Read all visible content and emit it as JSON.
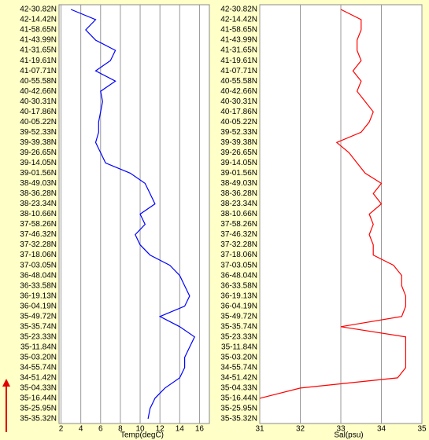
{
  "chart_data": [
    {
      "type": "line",
      "x_label": "Temp(degC)",
      "categories": [
        "42-30.82N",
        "42-14.42N",
        "41-58.65N",
        "41-43.99N",
        "41-31.65N",
        "41-19.61N",
        "41-07.71N",
        "40-55.58N",
        "40-42.66N",
        "40-30.31N",
        "40-17.86N",
        "40-05.22N",
        "39-52.33N",
        "39-39.38N",
        "39-26.65N",
        "39-14.05N",
        "39-01.56N",
        "38-49.03N",
        "38-36.28N",
        "38-23.34N",
        "38-10.66N",
        "37-58.26N",
        "37-46.32N",
        "37-32.28N",
        "37-18.06N",
        "37-03.05N",
        "36-48.04N",
        "36-33.58N",
        "36-19.13N",
        "36-04.19N",
        "35-49.72N",
        "35-35.74N",
        "35-23.33N",
        "35-11.84N",
        "35-03.20N",
        "34-55.74N",
        "34-51.42N",
        "35-04.33N",
        "35-16.44N",
        "35-25.95N",
        "35-35.32N"
      ],
      "series": [
        {
          "color": "#0000ff",
          "values": [
            3.0,
            5.5,
            4.5,
            5.5,
            7.5,
            7.0,
            5.5,
            7.5,
            6.0,
            6.2,
            6.0,
            5.8,
            5.8,
            5.5,
            6.0,
            6.5,
            9.0,
            10.5,
            11.0,
            11.5,
            10.0,
            10.5,
            9.5,
            10.0,
            11.0,
            13.0,
            14.0,
            14.5,
            15.0,
            14.5,
            12.0,
            14.0,
            15.5,
            15.0,
            14.5,
            14.5,
            14.0,
            12.5,
            11.5,
            11.0,
            10.8
          ]
        }
      ],
      "xlim": [
        1.8,
        17
      ],
      "xticks": [
        2,
        4,
        6,
        8,
        10,
        12,
        14,
        16
      ],
      "grid": true
    },
    {
      "type": "line",
      "x_label": "Sal(psu)",
      "categories": [
        "42-30.82N",
        "42-14.42N",
        "41-58.65N",
        "41-43.99N",
        "41-31.65N",
        "41-19.61N",
        "41-07.71N",
        "40-55.58N",
        "40-42.66N",
        "40-30.31N",
        "40-17.86N",
        "40-05.22N",
        "39-52.33N",
        "39-39.38N",
        "39-26.65N",
        "39-14.05N",
        "39-01.56N",
        "38-49.03N",
        "38-36.28N",
        "38-23.34N",
        "38-10.66N",
        "37-58.26N",
        "37-46.32N",
        "37-32.28N",
        "37-18.06N",
        "37-03.05N",
        "36-48.04N",
        "36-33.58N",
        "36-19.13N",
        "36-04.19N",
        "35-49.72N",
        "35-35.74N",
        "35-23.33N",
        "35-11.84N",
        "35-03.20N",
        "34-55.74N",
        "34-51.42N",
        "35-04.33N",
        "35-16.44N",
        "35-25.95N",
        "35-35.32N"
      ],
      "series": [
        {
          "color": "#ff0000",
          "values": [
            33.0,
            33.5,
            33.5,
            33.4,
            33.4,
            33.5,
            33.3,
            33.5,
            33.4,
            33.6,
            33.8,
            33.7,
            33.5,
            32.9,
            33.2,
            33.4,
            33.6,
            34.0,
            33.8,
            34.0,
            33.7,
            33.8,
            33.7,
            33.8,
            33.8,
            34.3,
            34.5,
            34.5,
            34.6,
            34.6,
            34.5,
            33.0,
            34.6,
            34.6,
            34.6,
            34.6,
            34.4,
            32.0,
            31.0,
            null,
            null
          ]
        }
      ],
      "xlim": [
        31,
        35
      ],
      "xticks": [
        31,
        32,
        33,
        34,
        35
      ],
      "grid": true
    }
  ]
}
